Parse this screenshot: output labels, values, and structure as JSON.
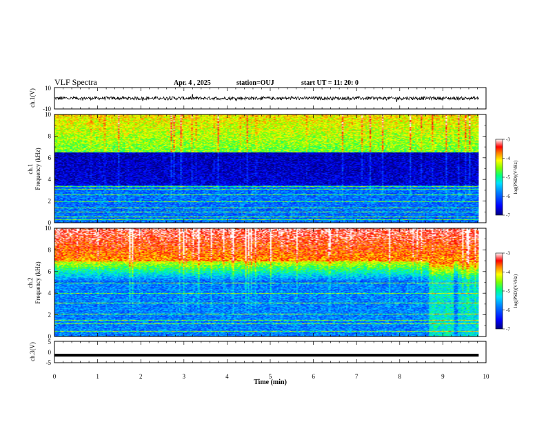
{
  "header": {
    "title": "VLF Spectra",
    "date": "Apr. 4 , 2025",
    "station": "station=OUJ",
    "start_ut": "start UT =  11: 20: 0"
  },
  "colors": {
    "spectrum_scale": [
      "#000090",
      "#0000ff",
      "#0060ff",
      "#00c8ff",
      "#00ffa0",
      "#80ff00",
      "#ffff00",
      "#ff8000",
      "#ff0000",
      "#ffffff"
    ],
    "trace": "#000000"
  },
  "chart_data": [
    {
      "type": "line",
      "panel": "waveform-ch1",
      "ylabel": "ch.1(V)",
      "ylim": [
        -10,
        10
      ],
      "yticks": [
        "10",
        "-10"
      ],
      "x_range_min": [
        0,
        10
      ],
      "description_series": "ch.1 waveform, amplitude about ±2 V, spiky",
      "series": [
        {
          "name": "",
          "mean": 0,
          "amplitude": 1.5
        }
      ]
    },
    {
      "type": "heatmap",
      "panel": "spectrogram-ch1",
      "ylabel": "ch.1\nFrequency (kHz)",
      "ylabel_line1": "ch.1",
      "ylabel_line2": "Frequency (kHz)",
      "ylim": [
        0,
        10
      ],
      "yticks": [
        "0",
        "2",
        "4",
        "6",
        "8",
        "10"
      ],
      "x_range_min": [
        0,
        9.83
      ],
      "colorbar": {
        "label": "log(PSD)(V²/Hz)",
        "range": [
          -7,
          -3
        ],
        "ticks": [
          "-3",
          "-4",
          "-5",
          "-6",
          "-7"
        ]
      },
      "profile": {
        "low_band_khz": [
          0,
          3.5
        ],
        "low_level": -5.9,
        "mid_level": -6.8,
        "high_level": -4.6,
        "noise_lines_khz": [
          0.3,
          0.6,
          1.0,
          1.4,
          2.0,
          2.6,
          3.1,
          3.4
        ]
      }
    },
    {
      "type": "heatmap",
      "panel": "spectrogram-ch2",
      "ylabel_line1": "ch.2",
      "ylabel_line2": "Frequency (kHz)",
      "ylim": [
        0,
        10
      ],
      "yticks": [
        "0",
        "2",
        "4",
        "6",
        "8",
        "10"
      ],
      "x_range_min": [
        0,
        9.83
      ],
      "colorbar": {
        "label": "log(PSD)(V²/Hz)",
        "range": [
          -7,
          -3
        ],
        "ticks": [
          "-3",
          "-4",
          "-5",
          "-6",
          "-7"
        ]
      },
      "profile": {
        "low_level": -5.6,
        "mid_level": -6.0,
        "high_level": -3.8,
        "noise_lines_khz": [
          0.5,
          1.2,
          1.5,
          2.1,
          3.1,
          4.0,
          5.0
        ]
      }
    },
    {
      "type": "line",
      "panel": "waveform-ch3",
      "ylabel": "ch.3(V)",
      "ylim": [
        -5,
        5
      ],
      "yticks": [
        "5",
        "0",
        "-5"
      ],
      "x_range_min": [
        0,
        10
      ],
      "series": [
        {
          "name": "",
          "constant": -1.5
        }
      ]
    }
  ],
  "xaxis": {
    "label": "Time (min)",
    "ticks": [
      "0",
      "1",
      "2",
      "3",
      "4",
      "5",
      "6",
      "7",
      "8",
      "9",
      "10"
    ],
    "range": [
      0,
      10
    ]
  }
}
